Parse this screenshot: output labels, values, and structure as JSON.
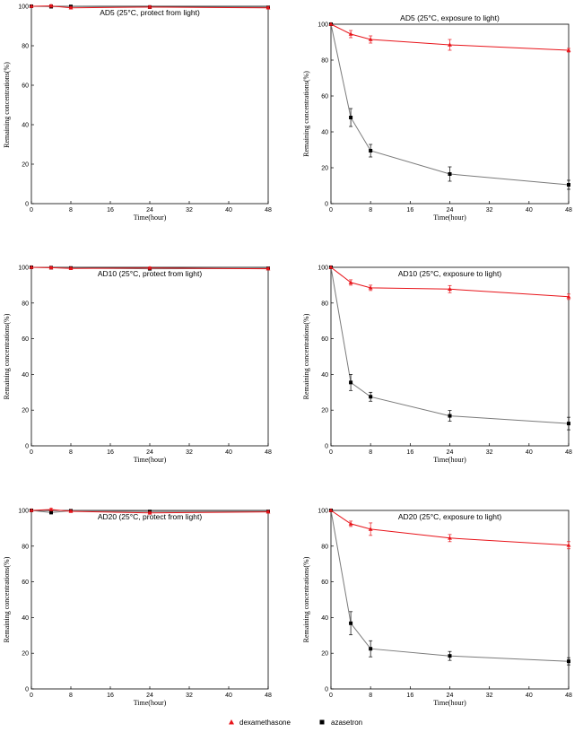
{
  "chart_data": [
    {
      "type": "line",
      "title": "AD5 (25°C, protect from light)",
      "xlabel": "Time(hour)",
      "ylabel": "Remaining concentrations(%)",
      "xlim": [
        0,
        48
      ],
      "ylim": [
        0,
        100
      ],
      "xticks": [
        0,
        8,
        16,
        24,
        32,
        40,
        48
      ],
      "yticks": [
        0,
        20,
        40,
        60,
        80,
        100
      ],
      "x": [
        0,
        4,
        8,
        24,
        48
      ],
      "series": [
        {
          "name": "azasetron",
          "values": [
            100,
            99.8,
            99.9,
            99.6,
            99.4
          ],
          "errors": [
            0,
            0.5,
            0.5,
            0.5,
            0.5
          ]
        },
        {
          "name": "dexamethasone",
          "values": [
            100,
            100.2,
            99.2,
            99.6,
            99.2
          ],
          "errors": [
            0,
            0.6,
            0.6,
            0.6,
            0.6
          ]
        }
      ]
    },
    {
      "type": "line",
      "title": "AD5 (25°C, exposure to light)",
      "xlabel": "Time(hour)",
      "ylabel": "Remaining concentrations(%)",
      "xlim": [
        0,
        48
      ],
      "ylim": [
        0,
        100
      ],
      "xticks": [
        0,
        8,
        16,
        24,
        32,
        40,
        48
      ],
      "yticks": [
        0,
        20,
        40,
        60,
        80,
        100
      ],
      "x": [
        0,
        4,
        8,
        24,
        48
      ],
      "series": [
        {
          "name": "azasetron",
          "values": [
            100,
            48,
            29.5,
            16.5,
            10.5
          ],
          "errors": [
            0,
            5,
            3.5,
            4,
            2.5
          ]
        },
        {
          "name": "dexamethasone",
          "values": [
            100,
            94.5,
            91.5,
            88.5,
            85.5
          ],
          "errors": [
            0,
            2,
            2,
            3,
            1
          ]
        }
      ]
    },
    {
      "type": "line",
      "title": "AD10 (25°C, protect from light)",
      "xlabel": "Time(hour)",
      "ylabel": "Remaining concentrations(%)",
      "xlim": [
        0,
        48
      ],
      "ylim": [
        0,
        100
      ],
      "xticks": [
        0,
        8,
        16,
        24,
        32,
        40,
        48
      ],
      "yticks": [
        0,
        20,
        40,
        60,
        80,
        100
      ],
      "x": [
        0,
        4,
        8,
        24,
        48
      ],
      "series": [
        {
          "name": "azasetron",
          "values": [
            100,
            99.8,
            99.6,
            99.2,
            99.4
          ],
          "errors": [
            0,
            0.5,
            0.5,
            0.5,
            0.5
          ]
        },
        {
          "name": "dexamethasone",
          "values": [
            100,
            99.8,
            99.4,
            99.6,
            99.2
          ],
          "errors": [
            0,
            0.5,
            0.5,
            0.6,
            0.5
          ]
        }
      ]
    },
    {
      "type": "line",
      "title": "AD10 (25°C, exposure to light)",
      "xlabel": "Time(hour)",
      "ylabel": "Remaining concentrations(%)",
      "xlim": [
        0,
        48
      ],
      "ylim": [
        0,
        100
      ],
      "xticks": [
        0,
        8,
        16,
        24,
        32,
        40,
        48
      ],
      "yticks": [
        0,
        20,
        40,
        60,
        80,
        100
      ],
      "x": [
        0,
        4,
        8,
        24,
        48
      ],
      "series": [
        {
          "name": "azasetron",
          "values": [
            100,
            35.5,
            27.5,
            16.8,
            12.5
          ],
          "errors": [
            0,
            4.5,
            2.5,
            3,
            3.5
          ]
        },
        {
          "name": "dexamethasone",
          "values": [
            100,
            91.5,
            88.5,
            87.8,
            83.5
          ],
          "errors": [
            0,
            1.5,
            1.5,
            2,
            1.5
          ]
        }
      ]
    },
    {
      "type": "line",
      "title": "AD20 (25°C, protect from light)",
      "xlabel": "Time(hour)",
      "ylabel": "Remaining concentrations(%)",
      "xlim": [
        0,
        48
      ],
      "ylim": [
        0,
        100
      ],
      "xticks": [
        0,
        8,
        16,
        24,
        32,
        40,
        48
      ],
      "yticks": [
        0,
        20,
        40,
        60,
        80,
        100
      ],
      "x": [
        0,
        4,
        8,
        24,
        48
      ],
      "series": [
        {
          "name": "azasetron",
          "values": [
            100,
            98.8,
            99.8,
            99.4,
            99.4
          ],
          "errors": [
            0,
            0.6,
            0.5,
            0.6,
            0.5
          ]
        },
        {
          "name": "dexamethasone",
          "values": [
            100,
            100.5,
            99.5,
            98.6,
            99.2
          ],
          "errors": [
            0,
            0.6,
            0.5,
            0.6,
            0.5
          ]
        }
      ]
    },
    {
      "type": "line",
      "title": "AD20 (25°C, exposure to light)",
      "xlabel": "Time(hour)",
      "ylabel": "Remaining concentrations(%)",
      "xlim": [
        0,
        48
      ],
      "ylim": [
        0,
        100
      ],
      "xticks": [
        0,
        8,
        16,
        24,
        32,
        40,
        48
      ],
      "yticks": [
        0,
        20,
        40,
        60,
        80,
        100
      ],
      "x": [
        0,
        4,
        8,
        24,
        48
      ],
      "series": [
        {
          "name": "azasetron",
          "values": [
            100,
            36.8,
            22.5,
            18.5,
            15.5
          ],
          "errors": [
            0,
            6.5,
            4.5,
            2.5,
            2
          ]
        },
        {
          "name": "dexamethasone",
          "values": [
            100,
            92.5,
            89.5,
            84.5,
            80.5
          ],
          "errors": [
            0,
            1.5,
            3.5,
            2,
            2
          ]
        }
      ]
    }
  ],
  "legend": {
    "placement": "bottom-center",
    "items": [
      {
        "label": "dexamethasone",
        "marker": "triangle",
        "color": "#e8141a"
      },
      {
        "label": "azasetron",
        "marker": "square",
        "color": "#000000"
      }
    ]
  },
  "colors": {
    "dexamethasone_line": "#e8141a",
    "azasetron_line": "#7a7a7a",
    "azasetron_marker": "#000000"
  }
}
